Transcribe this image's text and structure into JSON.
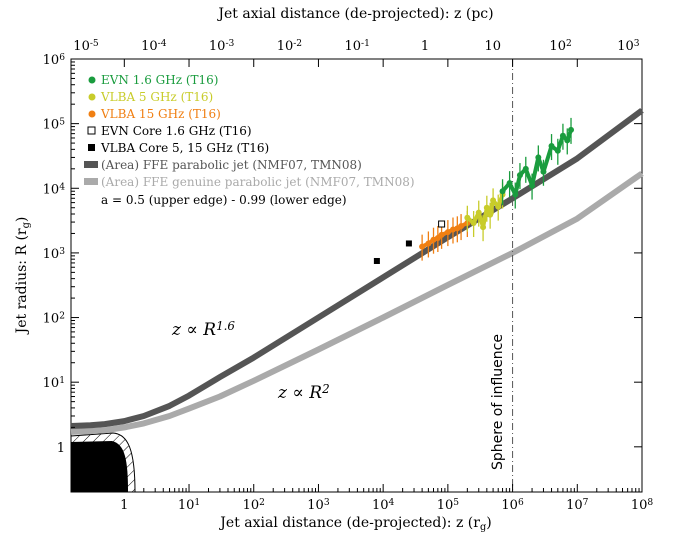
{
  "chart_data": {
    "type": "scatter",
    "top_xlabel": "Jet axial distance (de-projected): z (pc)",
    "xlabel": "Jet axial distance (de-projected): z (r_g)",
    "ylabel": "Jet radius: R (r_g)",
    "x_scale": "log",
    "y_scale": "log",
    "xlim": [
      0.15,
      100000000
    ],
    "ylim": [
      0.2,
      1000000
    ],
    "x_tick_labels": [
      "1",
      "10^1",
      "10^2",
      "10^3",
      "10^4",
      "10^5",
      "10^6",
      "10^7",
      "10^8"
    ],
    "y_tick_labels": [
      "1",
      "10^1",
      "10^2",
      "10^3",
      "10^4",
      "10^5",
      "10^6"
    ],
    "top_tick_labels": [
      "10^-5",
      "10^-4",
      "10^-3",
      "10^-2",
      "10^-1",
      "1",
      "10",
      "10^2",
      "10^3"
    ],
    "legend_placement": "top-left",
    "legend": [
      {
        "label": "EVN 1.6 GHz (T16)",
        "color": "#1a9c3e",
        "marker": "circle"
      },
      {
        "label": "VLBA 5 GHz (T16)",
        "color": "#c8cc2a",
        "marker": "circle"
      },
      {
        "label": "VLBA 15 GHz (T16)",
        "color": "#f07f12",
        "marker": "circle"
      },
      {
        "label": "EVN Core 1.6 GHz (T16)",
        "color": "#000000",
        "marker": "open-square"
      },
      {
        "label": "VLBA Core 5, 15 GHz (T16)",
        "color": "#000000",
        "marker": "filled-square"
      },
      {
        "label": "(Area) FFE parabolic jet (NMF07, TMN08)",
        "color": "#555555",
        "marker": "band"
      },
      {
        "label": "(Area) FFE genuine parabolic jet (NMF07, TMN08)",
        "color": "#aaaaaa",
        "marker": "band"
      }
    ],
    "legend_note": "a = 0.5 (upper edge) - 0.99 (lower edge)",
    "annotations": {
      "para_label": "z ∝ R^1.6",
      "genuine_label": "z ∝ R^2",
      "sphere_label": "Sphere of influence"
    },
    "sphere_of_influence_z": 1000000,
    "series": [
      {
        "name": "(Area) FFE parabolic jet (NMF07, TMN08)",
        "color": "#555555",
        "x": [
          0.15,
          0.3,
          0.5,
          1,
          2,
          5,
          10,
          30,
          100,
          1000,
          10000,
          100000,
          1000000,
          10000000,
          100000000
        ],
        "y": [
          2.1,
          2.15,
          2.25,
          2.5,
          3.0,
          4.3,
          6.2,
          12,
          24,
          100,
          420,
          1750,
          7000,
          29000,
          160000
        ]
      },
      {
        "name": "(Area) FFE genuine parabolic jet (NMF07, TMN08)",
        "color": "#aaaaaa",
        "x": [
          0.15,
          0.3,
          0.5,
          1,
          2,
          5,
          10,
          30,
          100,
          1000,
          10000,
          100000,
          1000000,
          10000000,
          100000000
        ],
        "y": [
          1.7,
          1.75,
          1.8,
          2.0,
          2.3,
          3.0,
          3.9,
          6.0,
          10.5,
          32,
          100,
          320,
          1000,
          3400,
          17000
        ]
      },
      {
        "name": "VLBA 15 GHz (T16)",
        "color": "#f07f12",
        "x": [
          40000,
          50000,
          60000,
          70000,
          80000,
          100000,
          120000,
          140000,
          160000,
          200000
        ],
        "y": [
          1250,
          1400,
          1600,
          1700,
          1900,
          2100,
          2300,
          2400,
          2600,
          2900
        ]
      },
      {
        "name": "VLBA 5 GHz (T16)",
        "color": "#c8cc2a",
        "x": [
          200000,
          250000,
          300000,
          350000,
          400000,
          450000,
          500000,
          600000,
          700000
        ],
        "y": [
          3500,
          2900,
          4200,
          2500,
          5000,
          3900,
          6500,
          5200,
          8000
        ]
      },
      {
        "name": "EVN 1.6 GHz (T16)",
        "color": "#1a9c3e",
        "x": [
          700000,
          900000,
          1100000,
          1300000,
          1600000,
          2000000,
          2500000,
          3000000,
          4000000,
          5000000,
          6000000,
          7000000,
          8000000
        ],
        "y": [
          9000,
          12000,
          8000,
          16000,
          20000,
          11000,
          30000,
          18000,
          45000,
          38000,
          65000,
          55000,
          80000
        ]
      },
      {
        "name": "EVN Core 1.6 GHz (T16)",
        "color": "#000000",
        "x": [
          80000
        ],
        "y": [
          2800
        ]
      },
      {
        "name": "VLBA Core 5, 15 GHz (T16)",
        "color": "#000000",
        "x": [
          8000,
          25000
        ],
        "y": [
          750,
          1400
        ]
      }
    ]
  }
}
